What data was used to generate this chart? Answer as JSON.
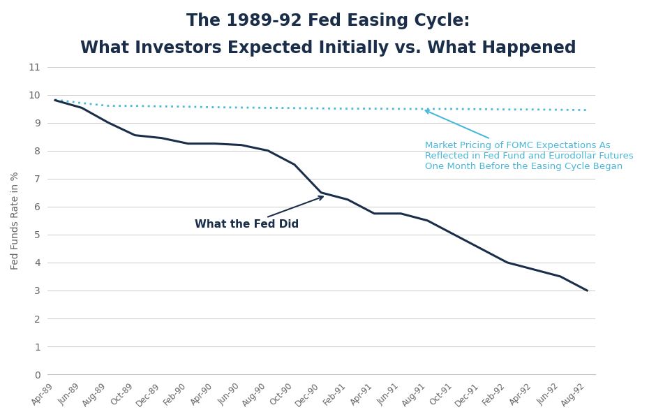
{
  "title_line1": "The 1989-92 Fed Easing Cycle:",
  "title_line2": "What Investors Expected Initially vs. What Happened",
  "ylabel": "Fed Funds Rate in %",
  "ylim": [
    0,
    11
  ],
  "yticks": [
    0,
    1,
    2,
    3,
    4,
    5,
    6,
    7,
    8,
    9,
    10,
    11
  ],
  "title_color": "#1a2e4a",
  "title_fontsize": 17,
  "background_color": "#ffffff",
  "grid_color": "#cccccc",
  "fed_color": "#1a2e4a",
  "market_color": "#4ab8d8",
  "x_labels": [
    "Apr-89",
    "Jun-89",
    "Aug-89",
    "Oct-89",
    "Dec-89",
    "Feb-90",
    "Apr-90",
    "Jun-90",
    "Aug-90",
    "Oct-90",
    "Dec-90",
    "Feb-91",
    "Apr-91",
    "Jun-91",
    "Aug-91",
    "Oct-91",
    "Dec-91",
    "Feb-92",
    "Apr-92",
    "Jun-92",
    "Aug-92"
  ],
  "fed_funds": [
    9.8,
    9.53,
    9.0,
    8.55,
    8.45,
    8.25,
    8.25,
    8.2,
    8.0,
    7.5,
    6.5,
    6.25,
    5.75,
    5.75,
    5.5,
    5.0,
    4.5,
    4.0,
    3.75,
    3.5,
    3.0
  ],
  "market_expectations": [
    9.82,
    9.7,
    9.6,
    9.6,
    9.58,
    9.57,
    9.55,
    9.54,
    9.53,
    9.52,
    9.51,
    9.5,
    9.5,
    9.49,
    9.49,
    9.49,
    9.48,
    9.47,
    9.47,
    9.46,
    9.45
  ],
  "annotation_fed_text": "What the Fed Did",
  "annotation_market_text": "Market Pricing of FOMC Expectations As\nReflected in Fed Fund and Eurodollar Futures\nOne Month Before the Easing Cycle Began"
}
